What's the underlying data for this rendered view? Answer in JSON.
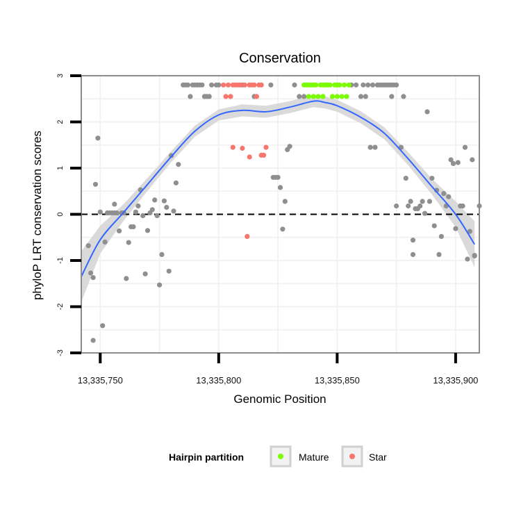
{
  "chart_data": {
    "type": "scatter",
    "title": "Conservation",
    "xlabel": "Genomic Position",
    "ylabel": "phyloP LRT conservation scores",
    "xlim": [
      13335742,
      13335910
    ],
    "ylim": [
      -3,
      3
    ],
    "x_ticks": [
      13335750,
      13335800,
      13335850,
      13335900
    ],
    "x_tick_labels": [
      "13,335,750",
      "13,335,800",
      "13,335,850",
      "13,335,900"
    ],
    "y_ticks": [
      -3,
      -2,
      -1,
      0,
      1,
      2,
      3
    ],
    "y_tick_labels": [
      "-3",
      "-2",
      "-1",
      "0",
      "1",
      "2",
      "3"
    ],
    "reference_line": {
      "y": 0,
      "style": "dashed"
    },
    "grid": true,
    "legend": {
      "title": "Hairpin partition",
      "position": "bottom",
      "entries": [
        {
          "label": "Mature",
          "color": "#7CFC00"
        },
        {
          "label": "Star",
          "color": "#F8766D"
        }
      ]
    },
    "colors": {
      "other": "#8F8F8F",
      "mature": "#7CFC00",
      "star": "#F8766D",
      "smooth": "#3366FF",
      "band": "#D3D3D3"
    },
    "series": [
      {
        "name": "Other",
        "points": [
          [
            13335745,
            -0.68
          ],
          [
            13335746,
            -1.27
          ],
          [
            13335747,
            -1.37
          ],
          [
            13335747,
            -2.73
          ],
          [
            13335748,
            0.65
          ],
          [
            13335749,
            1.65
          ],
          [
            13335750,
            0.05
          ],
          [
            13335751,
            -2.41
          ],
          [
            13335752,
            -0.6
          ],
          [
            13335753,
            0.03
          ],
          [
            13335754,
            0.03
          ],
          [
            13335755,
            0.03
          ],
          [
            13335756,
            0.22
          ],
          [
            13335756,
            0.03
          ],
          [
            13335757,
            0.03
          ],
          [
            13335758,
            -0.36
          ],
          [
            13335759,
            0.03
          ],
          [
            13335760,
            0.03
          ],
          [
            13335761,
            -1.39
          ],
          [
            13335762,
            -0.61
          ],
          [
            13335763,
            -0.27
          ],
          [
            13335764,
            -0.27
          ],
          [
            13335765,
            0.05
          ],
          [
            13335766,
            0.18
          ],
          [
            13335767,
            0.53
          ],
          [
            13335768,
            -0.03
          ],
          [
            13335769,
            -1.29
          ],
          [
            13335770,
            -0.35
          ],
          [
            13335771,
            0.03
          ],
          [
            13335772,
            0.1
          ],
          [
            13335773,
            0.31
          ],
          [
            13335774,
            -0.03
          ],
          [
            13335775,
            -1.53
          ],
          [
            13335776,
            -0.87
          ],
          [
            13335777,
            0.29
          ],
          [
            13335778,
            0.15
          ],
          [
            13335779,
            -1.23
          ],
          [
            13335780,
            1.27
          ],
          [
            13335781,
            0.07
          ],
          [
            13335782,
            0.68
          ],
          [
            13335783,
            1.08
          ],
          [
            13335785,
            2.8
          ],
          [
            13335786,
            2.8
          ],
          [
            13335787,
            2.8
          ],
          [
            13335788,
            2.55
          ],
          [
            13335789,
            2.8
          ],
          [
            13335790,
            2.8
          ],
          [
            13335791,
            2.8
          ],
          [
            13335792,
            2.8
          ],
          [
            13335793,
            2.8
          ],
          [
            13335794,
            2.55
          ],
          [
            13335795,
            2.55
          ],
          [
            13335796,
            2.55
          ],
          [
            13335797,
            2.8
          ],
          [
            13335799,
            2.8
          ],
          [
            13335800,
            2.8
          ],
          [
            13335810,
            2.8
          ],
          [
            13335815,
            2.55
          ],
          [
            13335822,
            2.8
          ],
          [
            13335823,
            0.8
          ],
          [
            13335824,
            0.8
          ],
          [
            13335825,
            0.8
          ],
          [
            13335826,
            0.58
          ],
          [
            13335827,
            -0.32
          ],
          [
            13335828,
            0.28
          ],
          [
            13335829,
            1.4
          ],
          [
            13335830,
            1.47
          ],
          [
            13335832,
            2.8
          ],
          [
            13335834,
            2.55
          ],
          [
            13335836,
            2.55
          ],
          [
            13335856,
            2.8
          ],
          [
            13335858,
            2.8
          ],
          [
            13335860,
            2.55
          ],
          [
            13335861,
            2.8
          ],
          [
            13335862,
            2.55
          ],
          [
            13335863,
            2.8
          ],
          [
            13335864,
            1.45
          ],
          [
            13335865,
            2.8
          ],
          [
            13335866,
            1.45
          ],
          [
            13335867,
            2.8
          ],
          [
            13335868,
            2.8
          ],
          [
            13335869,
            2.8
          ],
          [
            13335870,
            2.8
          ],
          [
            13335871,
            2.8
          ],
          [
            13335872,
            2.8
          ],
          [
            13335873,
            2.55
          ],
          [
            13335873,
            2.8
          ],
          [
            13335874,
            2.8
          ],
          [
            13335875,
            2.8
          ],
          [
            13335875,
            0.18
          ],
          [
            13335877,
            1.45
          ],
          [
            13335878,
            2.55
          ],
          [
            13335879,
            0.78
          ],
          [
            13335880,
            0.18
          ],
          [
            13335881,
            0.28
          ],
          [
            13335882,
            -0.87
          ],
          [
            13335882,
            -0.56
          ],
          [
            13335883,
            0.12
          ],
          [
            13335884,
            0.12
          ],
          [
            13335885,
            0.18
          ],
          [
            13335886,
            0.28
          ],
          [
            13335887,
            0.02
          ],
          [
            13335888,
            2.22
          ],
          [
            13335889,
            0.28
          ],
          [
            13335890,
            0.78
          ],
          [
            13335891,
            -0.25
          ],
          [
            13335892,
            0.52
          ],
          [
            13335893,
            -0.87
          ],
          [
            13335894,
            -0.48
          ],
          [
            13335895,
            0.45
          ],
          [
            13335896,
            0.18
          ],
          [
            13335897,
            0.38
          ],
          [
            13335898,
            1.18
          ],
          [
            13335899,
            1.1
          ],
          [
            13335900,
            -0.31
          ],
          [
            13335901,
            1.12
          ],
          [
            13335902,
            0.18
          ],
          [
            13335903,
            0.18
          ],
          [
            13335904,
            1.45
          ],
          [
            13335905,
            -0.97
          ],
          [
            13335906,
            -0.37
          ],
          [
            13335907,
            1.18
          ],
          [
            13335908,
            -0.89
          ],
          [
            13335908,
            -0.9
          ],
          [
            13335910,
            0.18
          ]
        ]
      },
      {
        "name": "Star",
        "points": [
          [
            13335802,
            2.8
          ],
          [
            13335803,
            2.55
          ],
          [
            13335804,
            2.8
          ],
          [
            13335805,
            2.55
          ],
          [
            13335806,
            2.8
          ],
          [
            13335806,
            1.45
          ],
          [
            13335807,
            2.8
          ],
          [
            13335808,
            2.8
          ],
          [
            13335809,
            2.8
          ],
          [
            13335810,
            1.43
          ],
          [
            13335811,
            2.8
          ],
          [
            13335812,
            -0.48
          ],
          [
            13335813,
            2.8
          ],
          [
            13335813,
            1.24
          ],
          [
            13335814,
            2.8
          ],
          [
            13335815,
            2.8
          ],
          [
            13335816,
            2.55
          ],
          [
            13335817,
            2.8
          ],
          [
            13335818,
            2.8
          ],
          [
            13335818,
            1.28
          ],
          [
            13335819,
            1.28
          ],
          [
            13335820,
            1.45
          ]
        ]
      },
      {
        "name": "Mature",
        "points": [
          [
            13335836,
            2.8
          ],
          [
            13335837,
            2.8
          ],
          [
            13335838,
            2.8
          ],
          [
            13335838,
            2.55
          ],
          [
            13335839,
            2.8
          ],
          [
            13335840,
            2.8
          ],
          [
            13335840,
            2.55
          ],
          [
            13335841,
            2.8
          ],
          [
            13335842,
            2.55
          ],
          [
            13335843,
            2.8
          ],
          [
            13335844,
            2.8
          ],
          [
            13335844,
            2.55
          ],
          [
            13335845,
            2.8
          ],
          [
            13335846,
            2.8
          ],
          [
            13335847,
            2.8
          ],
          [
            13335848,
            2.55
          ],
          [
            13335849,
            2.8
          ],
          [
            13335850,
            2.8
          ],
          [
            13335850,
            2.55
          ],
          [
            13335851,
            2.8
          ],
          [
            13335852,
            2.55
          ],
          [
            13335853,
            2.8
          ],
          [
            13335854,
            2.55
          ],
          [
            13335855,
            2.8
          ]
        ]
      }
    ],
    "smooth": {
      "x": [
        13335742,
        13335750,
        13335760,
        13335770,
        13335780,
        13335790,
        13335800,
        13335810,
        13335820,
        13335830,
        13335840,
        13335845,
        13335850,
        13335860,
        13335870,
        13335880,
        13335890,
        13335900,
        13335908
      ],
      "y": [
        -1.35,
        -0.55,
        0.05,
        0.65,
        1.25,
        1.8,
        2.15,
        2.25,
        2.22,
        2.32,
        2.45,
        2.42,
        2.35,
        2.1,
        1.75,
        1.2,
        0.6,
        0.0,
        -0.65
      ],
      "se": [
        0.55,
        0.3,
        0.18,
        0.14,
        0.12,
        0.12,
        0.12,
        0.13,
        0.13,
        0.13,
        0.13,
        0.13,
        0.13,
        0.13,
        0.13,
        0.14,
        0.17,
        0.28,
        0.5
      ]
    }
  }
}
